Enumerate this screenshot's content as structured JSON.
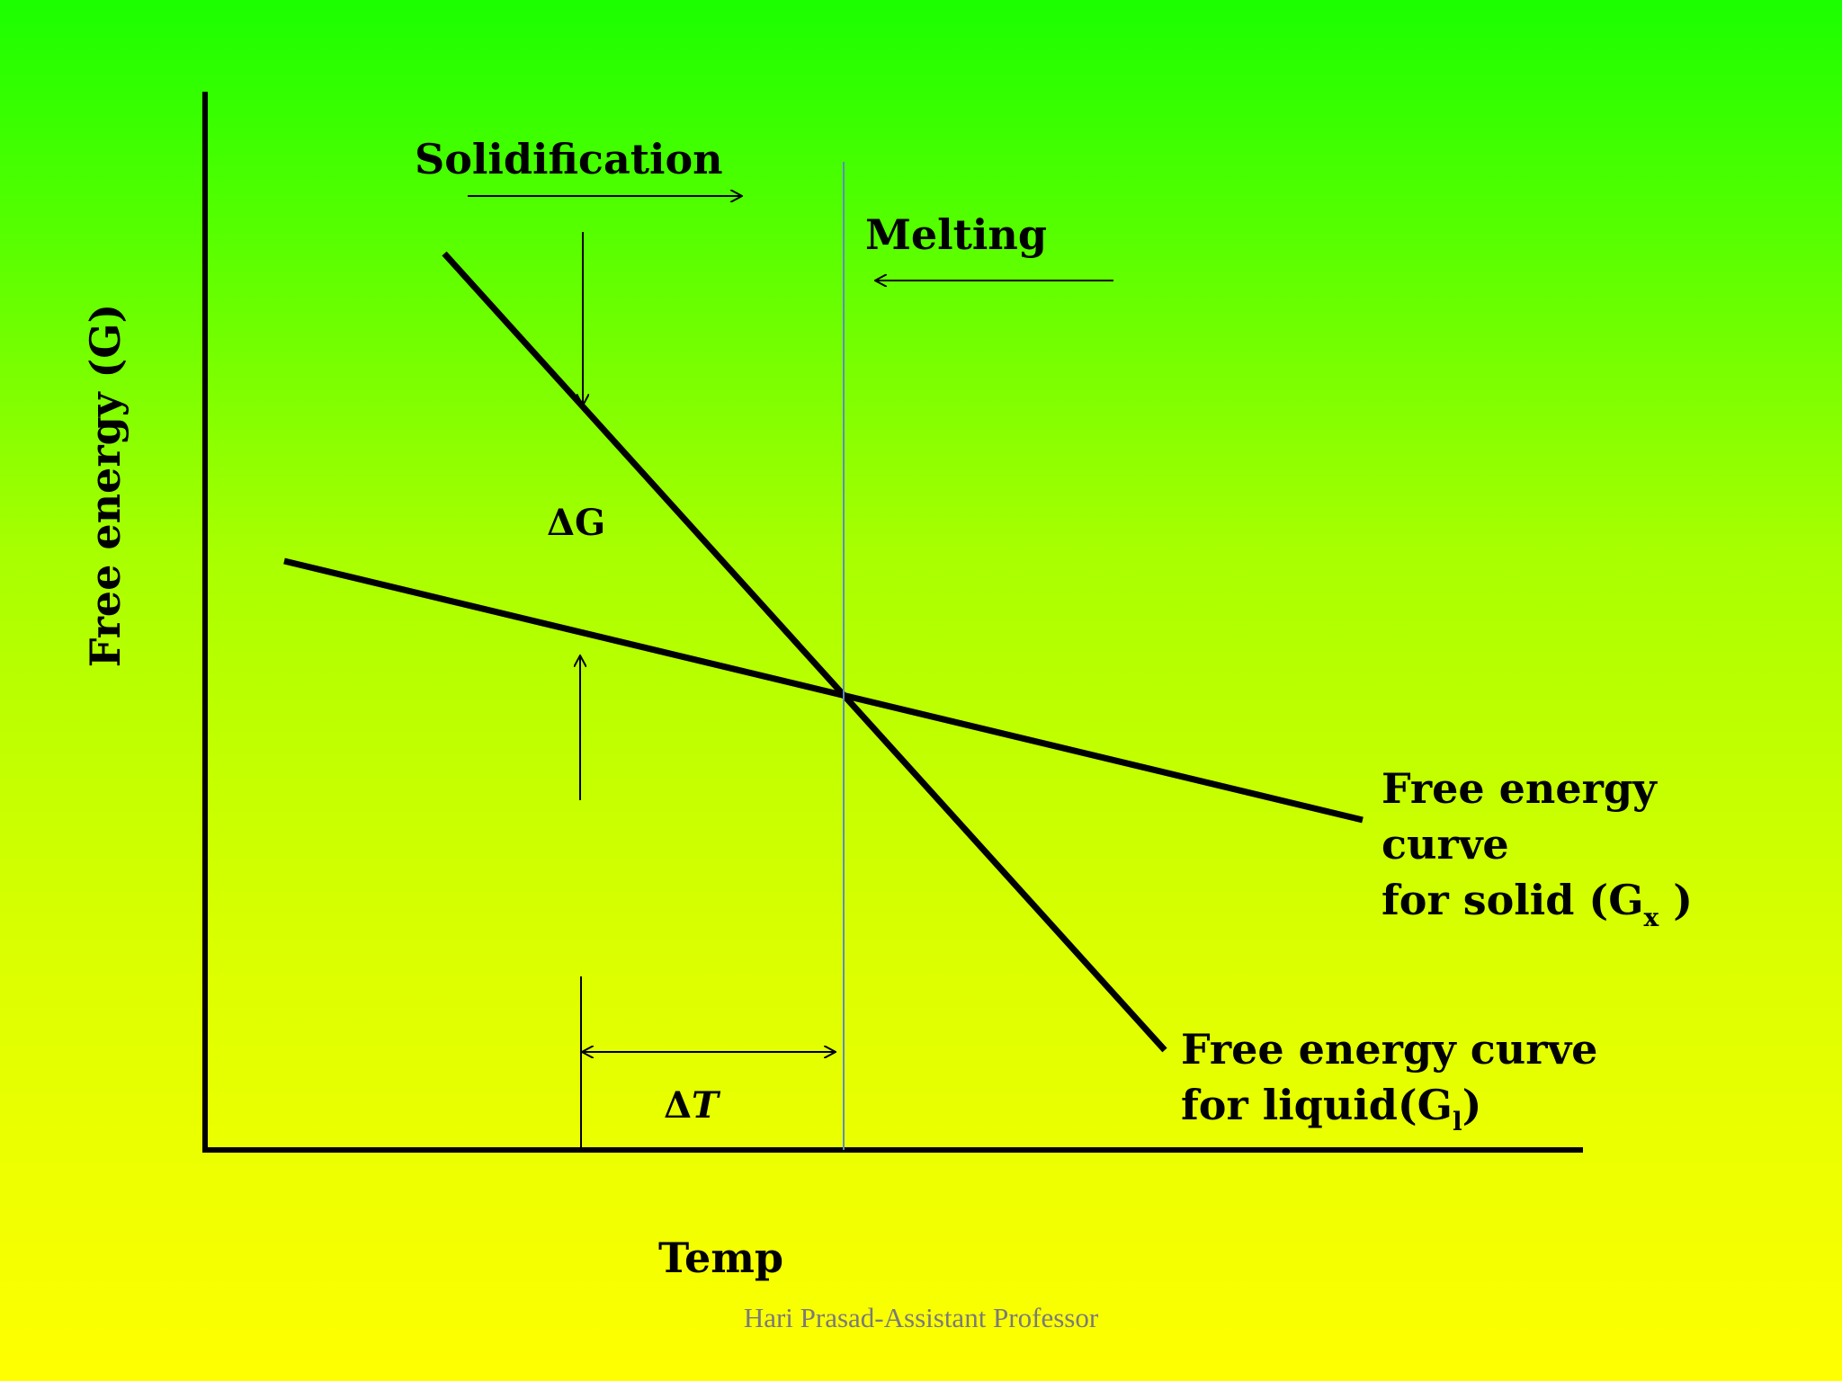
{
  "diagram": {
    "y_axis_label": "Free energy (G)",
    "x_axis_label": "Temp",
    "solidification_label": "Solidification",
    "melting_label": "Melting",
    "delta_g_label": "ΔG",
    "delta_t_prefix": "Δ",
    "delta_t_var": "T",
    "solid_curve": {
      "line1": "Free energy",
      "line2": "curve",
      "line3_prefix": "for solid (G",
      "subscript": "x",
      "line3_suffix": " )"
    },
    "liquid_curve": {
      "line1": "Free energy curve",
      "line2_prefix": "for liquid(G",
      "subscript": "l",
      "line2_suffix": ")"
    }
  },
  "footer": "Hari Prasad-Assistant Professor",
  "colors": {
    "background_top": "#1bff00",
    "background_bottom": "#ffff00",
    "lines": "#000000",
    "melting_point_line": "#5b8fb8",
    "footer_text": "#7a7a7a"
  }
}
